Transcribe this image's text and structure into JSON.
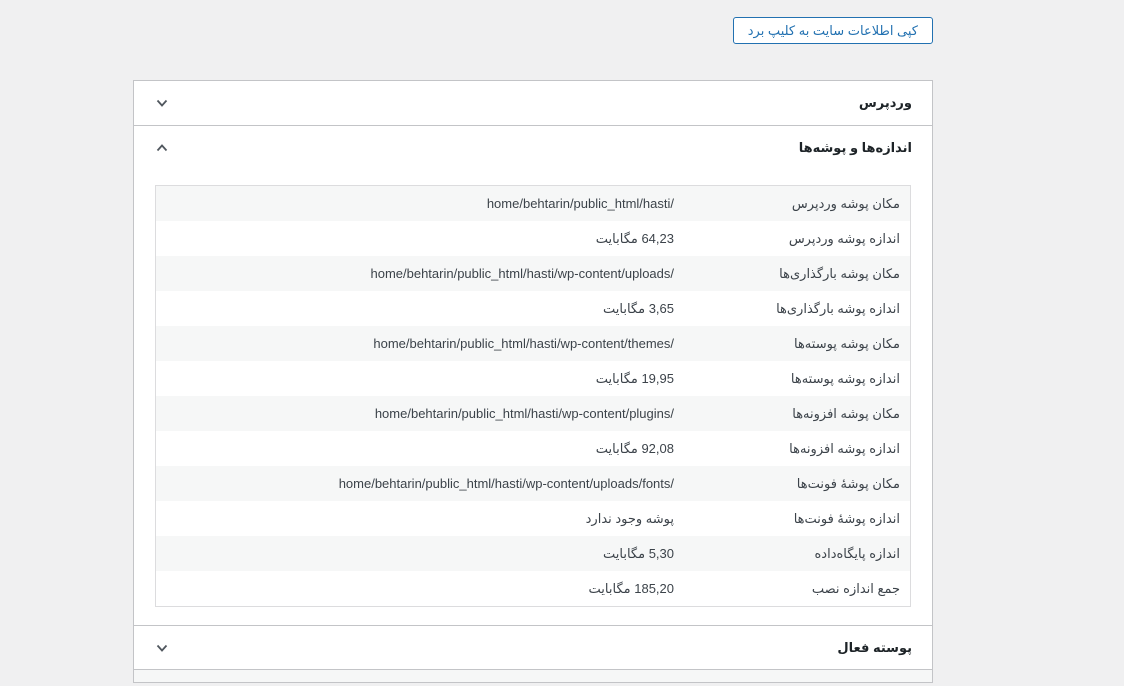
{
  "toolbar": {
    "copy_button_label": "کپی اطلاعات سایت به کلیپ برد"
  },
  "accordion": {
    "sections": [
      {
        "title": "وردپرس",
        "expanded": false,
        "chevron": "chevron-down-icon"
      },
      {
        "title": "اندازه‌ها و پوشه‌ها",
        "expanded": true,
        "chevron": "chevron-up-icon"
      },
      {
        "title": "پوسته فعال",
        "expanded": false,
        "chevron": "chevron-down-icon"
      }
    ]
  },
  "sizes_table": {
    "rows": [
      {
        "label": "مکان پوشه وردپرس",
        "value": "home/behtarin/public_html/hasti/"
      },
      {
        "label": "اندازه پوشه وردپرس",
        "value": "64,23 مگابایت"
      },
      {
        "label": "مکان پوشه بارگذاری‌ها",
        "value": "home/behtarin/public_html/hasti/wp-content/uploads/"
      },
      {
        "label": "اندازه پوشه بارگذاری‌ها",
        "value": "3,65 مگابایت"
      },
      {
        "label": "مکان پوشه پوسته‌ها",
        "value": "home/behtarin/public_html/hasti/wp-content/themes/"
      },
      {
        "label": "اندازه پوشه پوسته‌ها",
        "value": "19,95 مگابایت"
      },
      {
        "label": "مکان پوشه افزونه‌ها",
        "value": "home/behtarin/public_html/hasti/wp-content/plugins/"
      },
      {
        "label": "اندازه پوشه افزونه‌ها",
        "value": "92,08 مگابایت"
      },
      {
        "label": "مکان پوشهٔ فونت‌ها",
        "value": "home/behtarin/public_html/hasti/wp-content/uploads/fonts/"
      },
      {
        "label": "اندازه پوشهٔ فونت‌ها",
        "value": "پوشه وجود ندارد"
      },
      {
        "label": "اندازه پایگاه‌داده",
        "value": "5,30 مگابایت"
      },
      {
        "label": "جمع اندازه نصب",
        "value": "185,20 مگابایت"
      }
    ]
  },
  "colors": {
    "accent_blue": "#2271b1",
    "page_background": "#f0f0f1",
    "section_border": "#c3c4c7",
    "table_border": "#dcdcde",
    "stripe_row": "#f6f7f7",
    "heading_text": "#1d2327",
    "body_text": "#3c434a"
  }
}
